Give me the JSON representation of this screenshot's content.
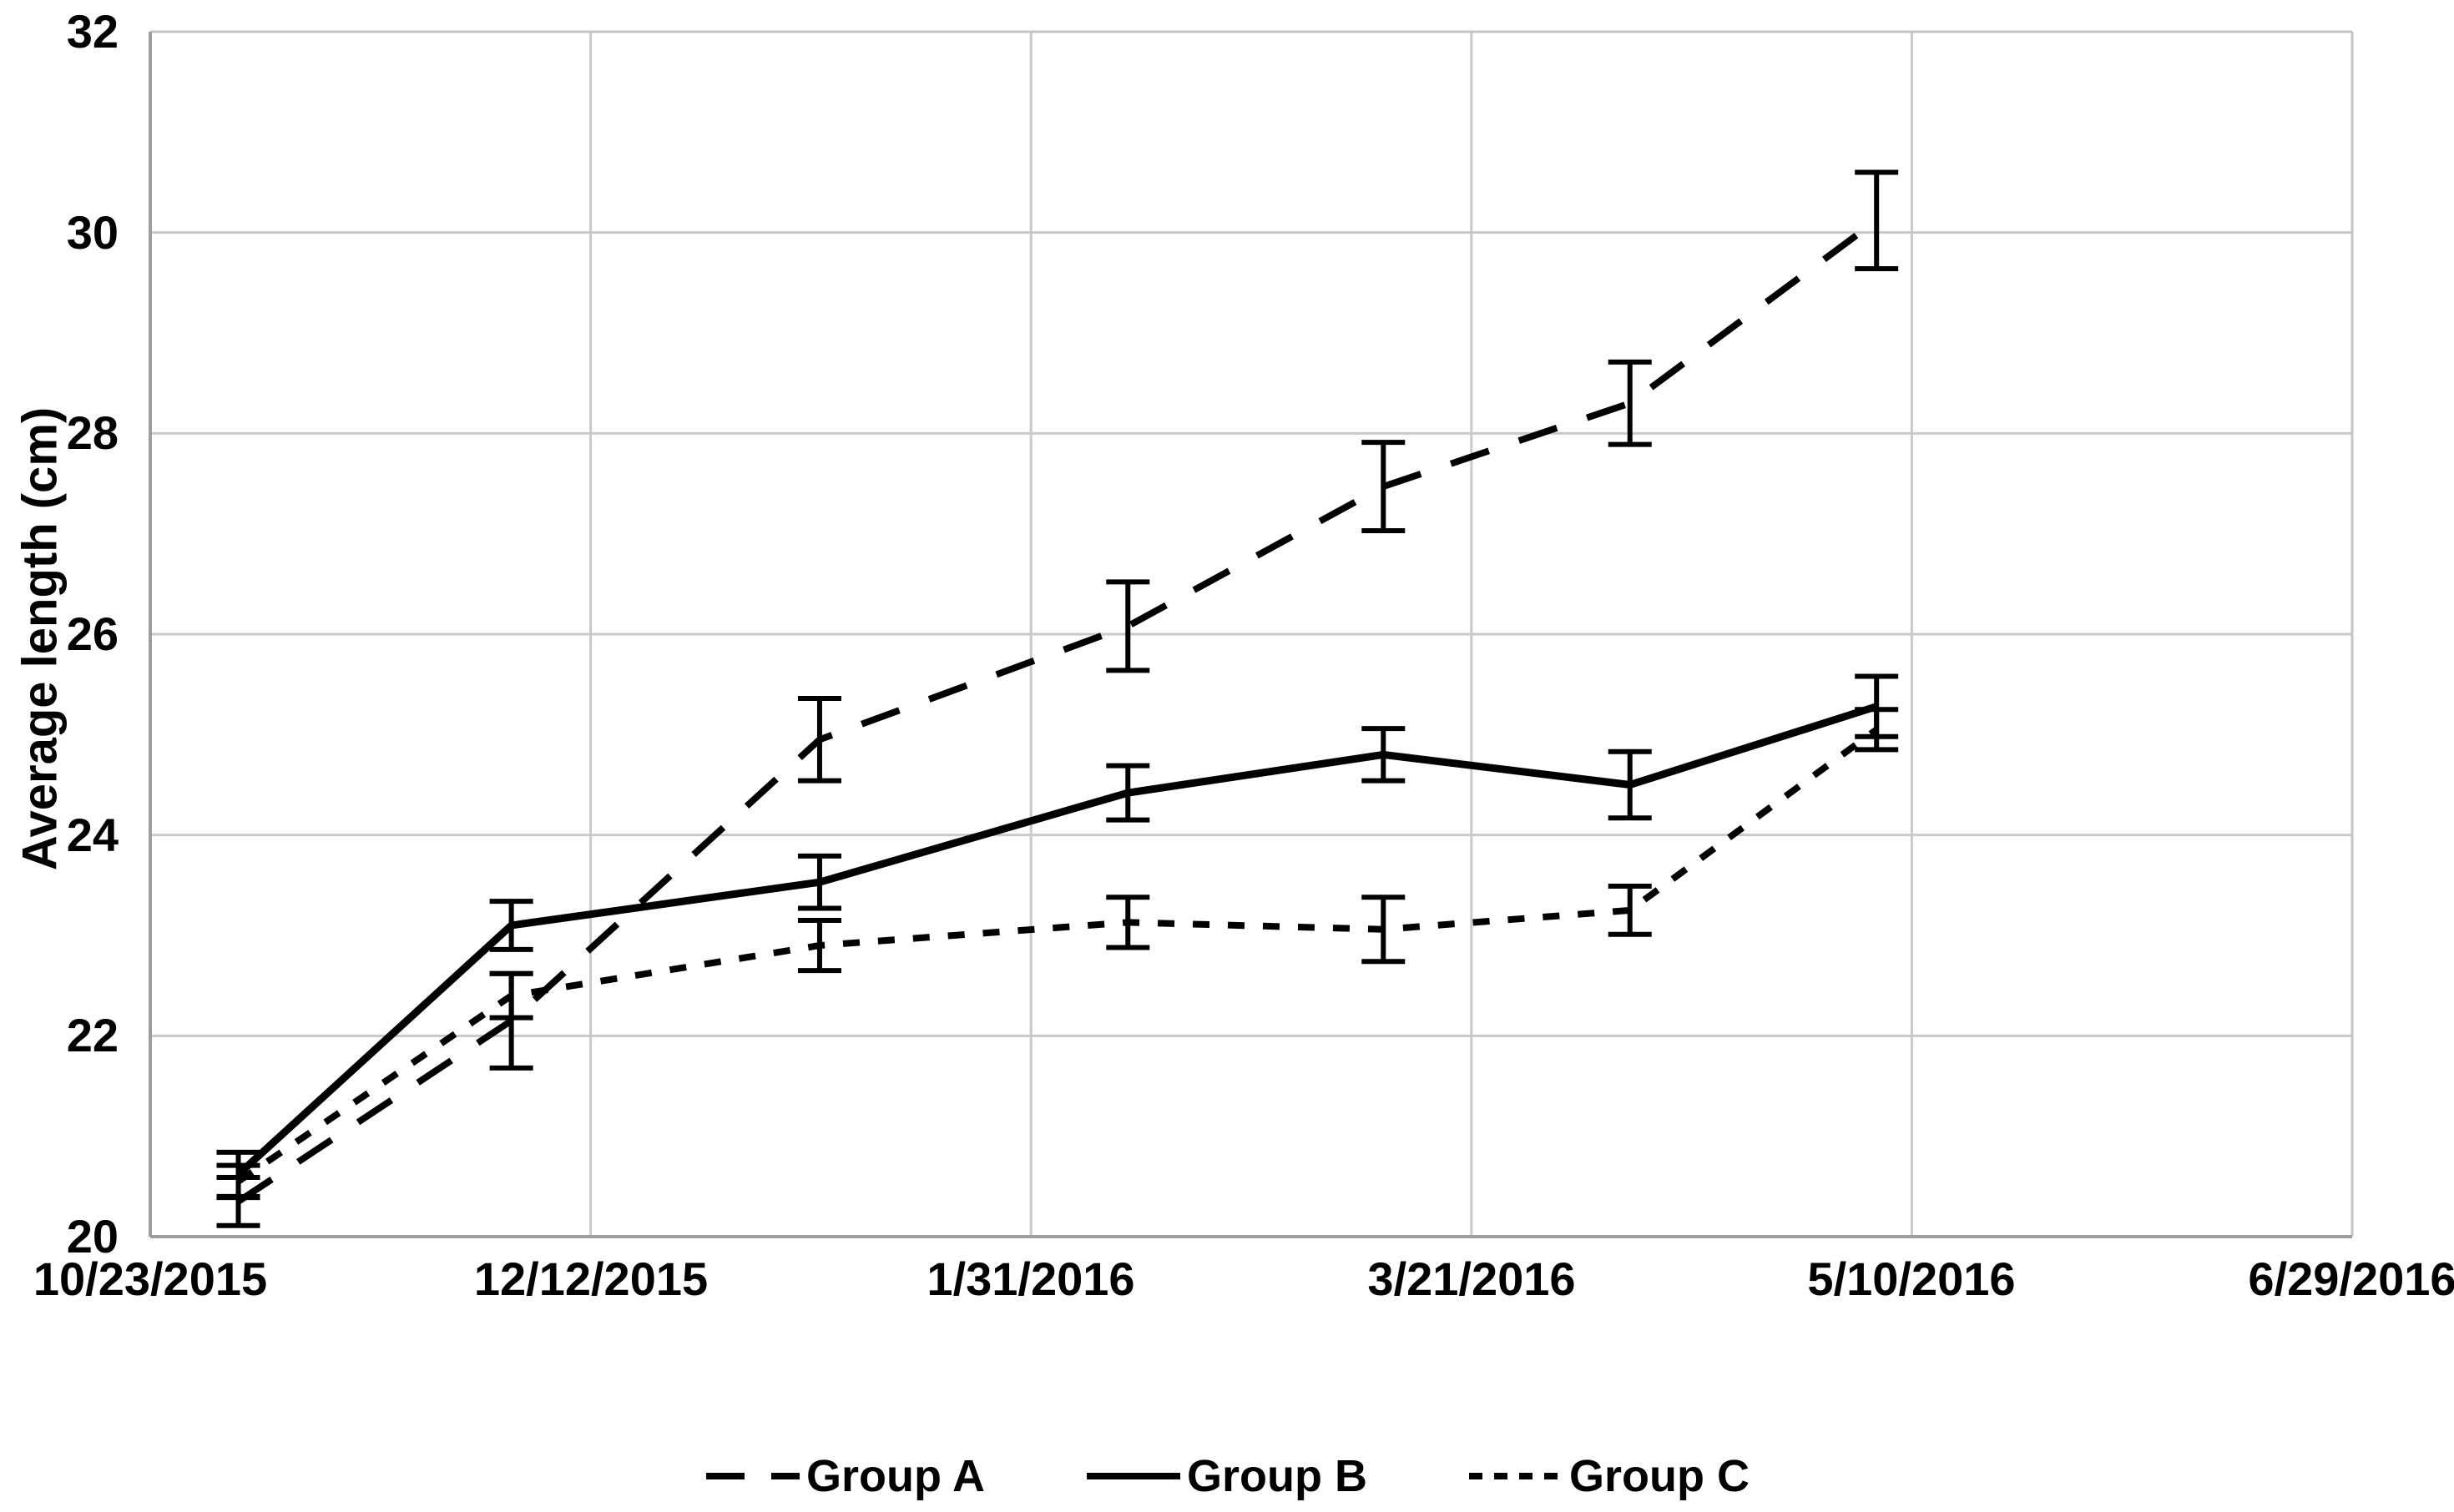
{
  "figure": {
    "kind": "error-bar line chart",
    "background": "#ffffff"
  },
  "chart_data": {
    "type": "line",
    "title": "",
    "xlabel": "",
    "ylabel": "Average length (cm)",
    "ylim": [
      20,
      32
    ],
    "y_tick_step": 2,
    "y_tick_labels": [
      "20",
      "22",
      "24",
      "26",
      "28",
      "30",
      "32"
    ],
    "x_tick_labels": [
      "10/23/2015",
      "12/12/2015",
      "1/31/2016",
      "3/21/2016",
      "5/10/2016",
      "6/29/2016"
    ],
    "x_tick_interval_days": 50,
    "x_total_days": 250,
    "grid": true,
    "error_bars": true,
    "legend_position": "bottom",
    "colors": {
      "series": "#000000",
      "grid": "#c9c9c9",
      "border": "#c4c4c4",
      "axis": "#9e9e9e",
      "text": "#000000",
      "background": "#ffffff"
    },
    "series": [
      {
        "name": "Group A",
        "line_style": "long-dash",
        "color": "#000000",
        "points": [
          {
            "date_est": "11/2/2015",
            "day": 10,
            "y": 20.35,
            "err": 0.24
          },
          {
            "date_est": "12/3/2015",
            "day": 41,
            "y": 22.15,
            "err": 0.47
          },
          {
            "date_est": "1/7/2016",
            "day": 76,
            "y": 24.95,
            "err": 0.41
          },
          {
            "date_est": "2/11/2016",
            "day": 111,
            "y": 26.08,
            "err": 0.44
          },
          {
            "date_est": "3/11/2016",
            "day": 140,
            "y": 27.47,
            "err": 0.44
          },
          {
            "date_est": "4/8/2016",
            "day": 168,
            "y": 28.3,
            "err": 0.41
          },
          {
            "date_est": "5/6/2016",
            "day": 196,
            "y": 30.12,
            "err": 0.48
          }
        ]
      },
      {
        "name": "Group B",
        "line_style": "solid",
        "color": "#000000",
        "points": [
          {
            "date_est": "11/2/2015",
            "day": 10,
            "y": 20.62,
            "err": 0.22
          },
          {
            "date_est": "12/3/2015",
            "day": 41,
            "y": 23.1,
            "err": 0.24
          },
          {
            "date_est": "1/7/2016",
            "day": 76,
            "y": 23.53,
            "err": 0.26
          },
          {
            "date_est": "2/11/2016",
            "day": 111,
            "y": 24.42,
            "err": 0.27
          },
          {
            "date_est": "3/11/2016",
            "day": 140,
            "y": 24.8,
            "err": 0.26
          },
          {
            "date_est": "4/8/2016",
            "day": 168,
            "y": 24.5,
            "err": 0.33
          },
          {
            "date_est": "5/6/2016",
            "day": 196,
            "y": 25.28,
            "err": 0.3
          }
        ]
      },
      {
        "name": "Group C",
        "line_style": "short-dash",
        "color": "#000000",
        "points": [
          {
            "date_est": "11/2/2015",
            "day": 10,
            "y": 20.55,
            "err": 0.16
          },
          {
            "date_est": "12/3/2015",
            "day": 41,
            "y": 22.4,
            "err": 0.22
          },
          {
            "date_est": "1/7/2016",
            "day": 76,
            "y": 22.9,
            "err": 0.25
          },
          {
            "date_est": "2/11/2016",
            "day": 111,
            "y": 23.13,
            "err": 0.25
          },
          {
            "date_est": "3/11/2016",
            "day": 140,
            "y": 23.06,
            "err": 0.32
          },
          {
            "date_est": "4/8/2016",
            "day": 168,
            "y": 23.25,
            "err": 0.24
          },
          {
            "date_est": "5/6/2016",
            "day": 196,
            "y": 25.05,
            "err": 0.2
          }
        ]
      }
    ]
  }
}
